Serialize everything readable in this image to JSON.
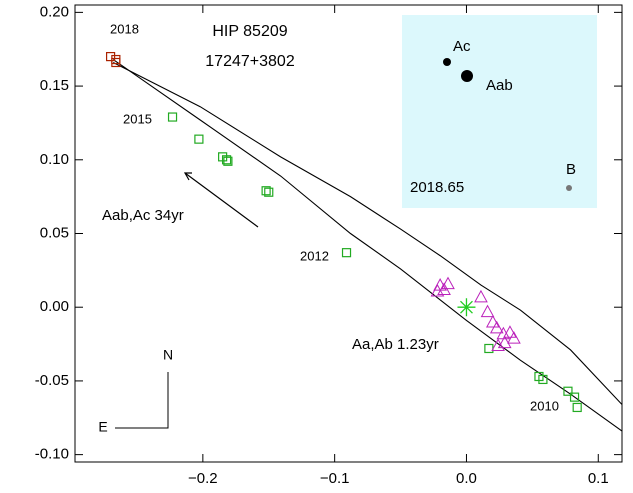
{
  "chart_data": {
    "type": "scatter",
    "annotations": [
      "HIP 85209",
      "17247+3802",
      "2018",
      "2015",
      "2012",
      "2010",
      "Aab,Ac  34yr",
      "Aa,Ab 1.23yr",
      "N",
      "E",
      "Ac",
      "Aab",
      "B",
      "2018.65"
    ],
    "xlim": [
      -0.297,
      0.118
    ],
    "ylim": [
      -0.105,
      0.205
    ],
    "xticks": [
      {
        "value": -0.2,
        "label": "−0.2"
      },
      {
        "value": -0.1,
        "label": "−0.1"
      },
      {
        "value": 0,
        "label": "0.0"
      },
      0.1
    ],
    "yticks": [
      {
        "value": -0.1,
        "label": "-0.10"
      },
      {
        "value": -0.05,
        "label": "-0.05"
      },
      {
        "value": 0,
        "label": "0.00"
      },
      {
        "value": 0.05,
        "label": "0.05"
      },
      {
        "value": 0.1,
        "label": "0.10"
      },
      {
        "value": 0.15,
        "label": "0.15"
      },
      {
        "value": 0.2,
        "label": "0.20"
      }
    ],
    "series": [
      {
        "marker": "line",
        "color": "#000000",
        "x": [
          -0.268,
          -0.202,
          -0.141,
          -0.088,
          -0.05,
          -0.02,
          0.011,
          0.041,
          0.079,
          0.118
        ],
        "values": [
          0.166,
          0.136,
          0.102,
          0.075,
          0.053,
          0.035,
          0.015,
          -0.002,
          -0.029,
          -0.066
        ]
      },
      {
        "marker": "line",
        "color": "#000000",
        "x": [
          -0.268,
          -0.202,
          -0.141,
          -0.088,
          -0.05,
          0,
          0.041,
          0.079,
          0.118
        ],
        "values": [
          0.168,
          0.127,
          0.089,
          0.05,
          0.026,
          -0.009,
          -0.036,
          -0.059,
          -0.084
        ]
      },
      {
        "marker": "square",
        "color": "#22aa22",
        "x": [
          -0.223,
          -0.203,
          -0.185,
          -0.182,
          -0.181,
          -0.152,
          -0.15,
          -0.091,
          0.017,
          0.055,
          0.058,
          0.077,
          0.082,
          0.084
        ],
        "values": [
          0.129,
          0.114,
          0.102,
          0.1,
          0.099,
          0.079,
          0.078,
          0.037,
          -0.028,
          -0.047,
          -0.049,
          -0.057,
          -0.061,
          -0.068
        ]
      },
      {
        "marker": "square",
        "color": "#aa2200",
        "x": [
          -0.27,
          -0.266,
          -0.266
        ],
        "values": [
          0.17,
          0.168,
          0.166
        ]
      },
      {
        "marker": "triangle",
        "color": "#bb22bb",
        "x": [
          -0.02,
          -0.017,
          -0.014,
          -0.022,
          0.011,
          0.016,
          0.02,
          0.023,
          0.028,
          0.029,
          0.024,
          0.033,
          0.036
        ],
        "values": [
          0.015,
          0.012,
          0.016,
          0.011,
          0.007,
          -0.003,
          -0.01,
          -0.014,
          -0.018,
          -0.024,
          -0.026,
          -0.017,
          -0.021
        ]
      },
      {
        "marker": "asterisk",
        "color": "#22cc22",
        "x": [
          0
        ],
        "values": [
          0
        ]
      }
    ]
  }
}
